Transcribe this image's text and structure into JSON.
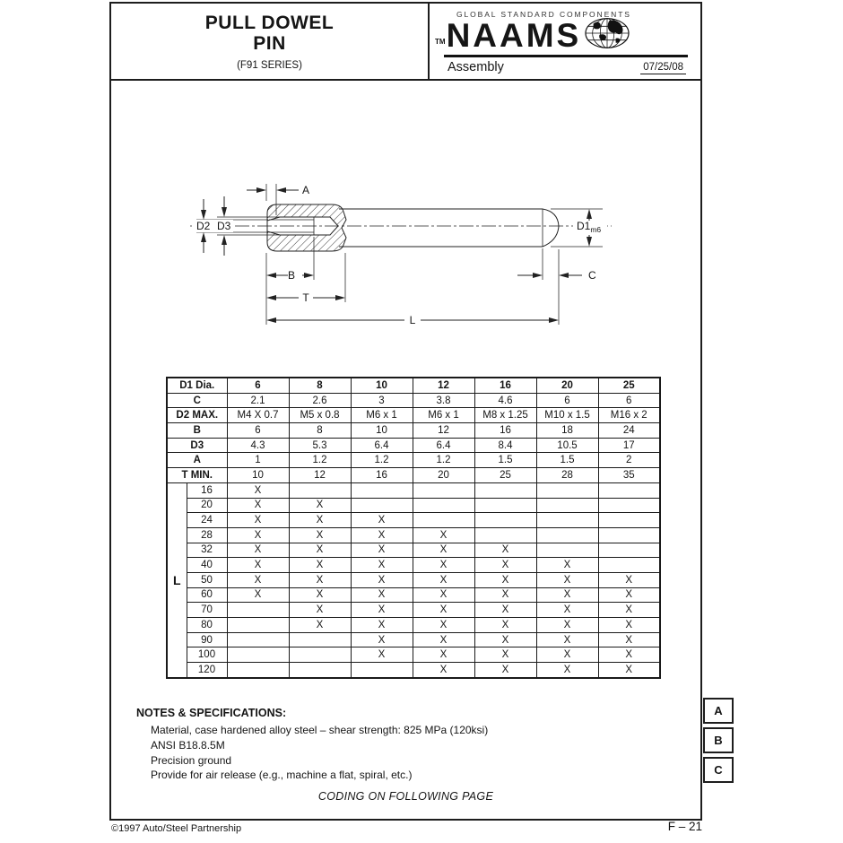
{
  "header": {
    "title_line1": "PULL DOWEL",
    "title_line2": "PIN",
    "series": "(F91 SERIES)",
    "tagline": "GLOBAL STANDARD COMPONENTS",
    "tm": "TM",
    "brand": "NAAMS",
    "category": "Assembly",
    "date": "07/25/08"
  },
  "drawing": {
    "labels": {
      "a": "A",
      "b": "B",
      "t": "T",
      "l": "L",
      "c": "C",
      "d1": "D1",
      "d1_sub": "m6",
      "d2": "D2",
      "d3": "D3"
    }
  },
  "table": {
    "header_label": "D1 Dia.",
    "columns": [
      "6",
      "8",
      "10",
      "12",
      "16",
      "20",
      "25"
    ],
    "spec_rows": [
      {
        "label": "C",
        "values": [
          "2.1",
          "2.6",
          "3",
          "3.8",
          "4.6",
          "6",
          "6"
        ]
      },
      {
        "label": "D2 MAX.",
        "values": [
          "M4 X 0.7",
          "M5 x 0.8",
          "M6 x 1",
          "M6 x 1",
          "M8 x 1.25",
          "M10 x 1.5",
          "M16 x 2"
        ]
      },
      {
        "label": "B",
        "values": [
          "6",
          "8",
          "10",
          "12",
          "16",
          "18",
          "24"
        ]
      },
      {
        "label": "D3",
        "values": [
          "4.3",
          "5.3",
          "6.4",
          "6.4",
          "8.4",
          "10.5",
          "17"
        ]
      },
      {
        "label": "A",
        "values": [
          "1",
          "1.2",
          "1.2",
          "1.2",
          "1.5",
          "1.5",
          "2"
        ]
      },
      {
        "label": "T MIN.",
        "values": [
          "10",
          "12",
          "16",
          "20",
          "25",
          "28",
          "35"
        ]
      }
    ],
    "l_group_label": "L",
    "l_rows": [
      {
        "length": "16",
        "marks": [
          "X",
          "",
          "",
          "",
          "",
          "",
          ""
        ]
      },
      {
        "length": "20",
        "marks": [
          "X",
          "X",
          "",
          "",
          "",
          "",
          ""
        ]
      },
      {
        "length": "24",
        "marks": [
          "X",
          "X",
          "X",
          "",
          "",
          "",
          ""
        ]
      },
      {
        "length": "28",
        "marks": [
          "X",
          "X",
          "X",
          "X",
          "",
          "",
          ""
        ]
      },
      {
        "length": "32",
        "marks": [
          "X",
          "X",
          "X",
          "X",
          "X",
          "",
          ""
        ]
      },
      {
        "length": "40",
        "marks": [
          "X",
          "X",
          "X",
          "X",
          "X",
          "X",
          ""
        ]
      },
      {
        "length": "50",
        "marks": [
          "X",
          "X",
          "X",
          "X",
          "X",
          "X",
          "X"
        ]
      },
      {
        "length": "60",
        "marks": [
          "X",
          "X",
          "X",
          "X",
          "X",
          "X",
          "X"
        ]
      },
      {
        "length": "70",
        "marks": [
          "",
          "X",
          "X",
          "X",
          "X",
          "X",
          "X"
        ]
      },
      {
        "length": "80",
        "marks": [
          "",
          "X",
          "X",
          "X",
          "X",
          "X",
          "X"
        ]
      },
      {
        "length": "90",
        "marks": [
          "",
          "",
          "X",
          "X",
          "X",
          "X",
          "X"
        ]
      },
      {
        "length": "100",
        "marks": [
          "",
          "",
          "X",
          "X",
          "X",
          "X",
          "X"
        ]
      },
      {
        "length": "120",
        "marks": [
          "",
          "",
          "",
          "X",
          "X",
          "X",
          "X"
        ]
      }
    ]
  },
  "notes": {
    "heading": "NOTES & SPECIFICATIONS:",
    "lines": [
      "Material, case hardened alloy steel – shear strength: 825 MPa (120ksi)",
      "ANSI B18.8.5M",
      "Precision ground",
      "Provide for air release (e.g., machine a flat, spiral, etc.)"
    ],
    "coding_note": "CODING ON FOLLOWING PAGE"
  },
  "side_tabs": [
    "A",
    "B",
    "C"
  ],
  "footer": {
    "copyright": "©1997 Auto/Steel Partnership",
    "page": "F – 21"
  }
}
